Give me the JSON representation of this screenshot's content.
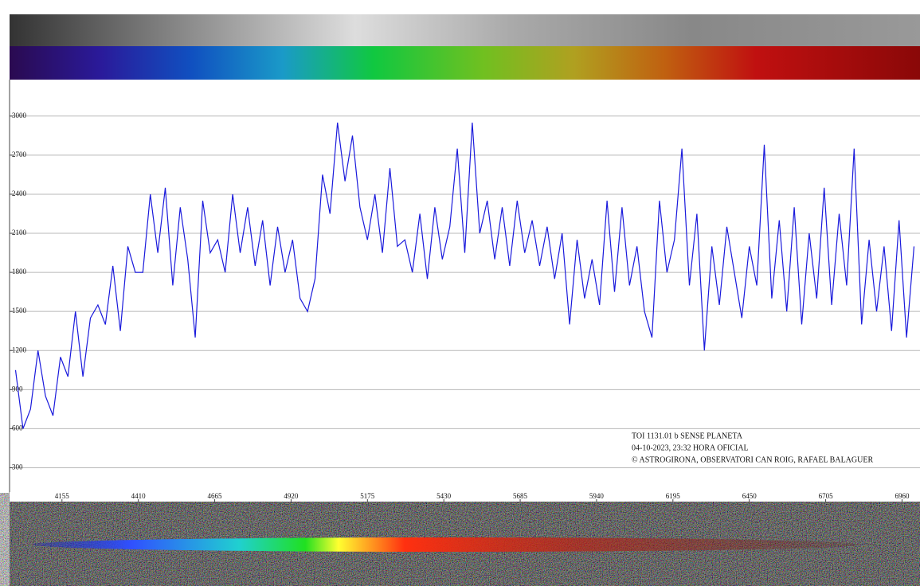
{
  "chart_data": {
    "type": "line",
    "annotations": [
      "TOI 1131.01 b SENSE PLANETA",
      "04-10-2023, 23:32 HORA OFICIAL",
      "© ASTROGIRONA, OBSERVATORI CAN  ROIG, RAFAEL BALAGUER"
    ],
    "x": [
      4000,
      4025,
      4050,
      4075,
      4100,
      4125,
      4150,
      4175,
      4200,
      4225,
      4250,
      4275,
      4300,
      4325,
      4350,
      4375,
      4400,
      4425,
      4450,
      4475,
      4500,
      4525,
      4550,
      4575,
      4600,
      4625,
      4650,
      4675,
      4700,
      4725,
      4750,
      4775,
      4800,
      4825,
      4850,
      4875,
      4900,
      4925,
      4950,
      4975,
      5000,
      5025,
      5050,
      5075,
      5100,
      5125,
      5150,
      5175,
      5200,
      5225,
      5250,
      5275,
      5300,
      5325,
      5350,
      5375,
      5400,
      5425,
      5450,
      5475,
      5500,
      5525,
      5550,
      5575,
      5600,
      5625,
      5650,
      5675,
      5700,
      5725,
      5750,
      5775,
      5800,
      5825,
      5850,
      5875,
      5900,
      5925,
      5950,
      5975,
      6000,
      6025,
      6050,
      6075,
      6100,
      6125,
      6150,
      6175,
      6200,
      6225,
      6250,
      6275,
      6300,
      6325,
      6350,
      6375,
      6400,
      6425,
      6450,
      6475,
      6500,
      6525,
      6550,
      6575,
      6600,
      6625,
      6650,
      6675,
      6700,
      6725,
      6750,
      6775,
      6800,
      6825,
      6850,
      6875,
      6900,
      6925,
      6950,
      6975,
      7000
    ],
    "series": [
      {
        "color": "#1a1adc",
        "values": [
          1050,
          600,
          750,
          1200,
          850,
          700,
          1150,
          1000,
          1500,
          1000,
          1450,
          1550,
          1400,
          1850,
          1350,
          2000,
          1800,
          1800,
          2400,
          1950,
          2450,
          1700,
          2300,
          1900,
          1300,
          2350,
          1950,
          2050,
          1800,
          2400,
          1950,
          2300,
          1850,
          2200,
          1700,
          2150,
          1800,
          2050,
          1600,
          1500,
          1750,
          2550,
          2250,
          2950,
          2500,
          2850,
          2300,
          2050,
          2400,
          1950,
          2600,
          2000,
          2050,
          1800,
          2250,
          1750,
          2300,
          1900,
          2150,
          2750,
          1950,
          2950,
          2100,
          2350,
          1900,
          2300,
          1850,
          2350,
          1950,
          2200,
          1850,
          2150,
          1750,
          2100,
          1400,
          2050,
          1600,
          1900,
          1550,
          2350,
          1650,
          2300,
          1700,
          2000,
          1500,
          1300,
          2350,
          1800,
          2050,
          2750,
          1700,
          2250,
          1200,
          2000,
          1550,
          2150,
          1800,
          1450,
          2000,
          1700,
          2780,
          1600,
          2200,
          1500,
          2300,
          1400,
          2100,
          1600,
          2450,
          1550,
          2250,
          1700,
          2750,
          1400,
          2050,
          1500,
          2000,
          1350,
          2200,
          1300,
          2000
        ]
      }
    ],
    "xlim": [
      3980,
      7020
    ],
    "xticks": [
      4155,
      4410,
      4665,
      4920,
      5175,
      5430,
      5685,
      5940,
      6195,
      6450,
      6705,
      6960
    ],
    "ylim": [
      40,
      3280
    ],
    "yticks": [
      300,
      600,
      900,
      1200,
      1500,
      1800,
      2100,
      2400,
      2700,
      3000
    ],
    "grid": true
  }
}
